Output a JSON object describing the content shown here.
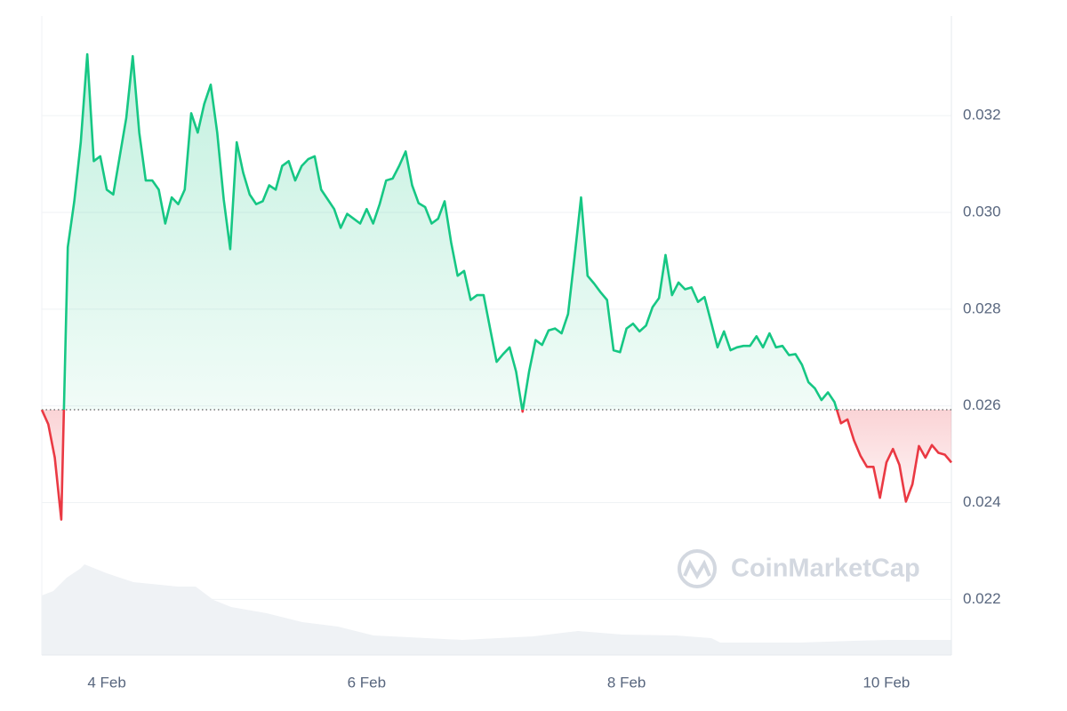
{
  "chart_data": {
    "type": "line",
    "watermark": "CoinMarketCap",
    "x": [
      3.5,
      3.55,
      3.6,
      3.65,
      3.7,
      3.75,
      3.8,
      3.85,
      3.9,
      3.95,
      4,
      4.05,
      4.1,
      4.15,
      4.2,
      4.25,
      4.3,
      4.35,
      4.4,
      4.45,
      4.5,
      4.55,
      4.6,
      4.65,
      4.7,
      4.75,
      4.8,
      4.85,
      4.9,
      4.95,
      5,
      5.05,
      5.1,
      5.15,
      5.2,
      5.25,
      5.3,
      5.35,
      5.4,
      5.45,
      5.5,
      5.55,
      5.6,
      5.65,
      5.7,
      5.75,
      5.8,
      5.85,
      5.9,
      5.95,
      6,
      6.05,
      6.1,
      6.15,
      6.2,
      6.25,
      6.3,
      6.35,
      6.4,
      6.45,
      6.5,
      6.55,
      6.6,
      6.65,
      6.7,
      6.75,
      6.8,
      6.85,
      6.9,
      6.95,
      7,
      7.05,
      7.1,
      7.15,
      7.2,
      7.25,
      7.3,
      7.35,
      7.4,
      7.45,
      7.5,
      7.55,
      7.6,
      7.65,
      7.7,
      7.75,
      7.8,
      7.85,
      7.9,
      7.95,
      8,
      8.05,
      8.1,
      8.15,
      8.2,
      8.25,
      8.3,
      8.35,
      8.4,
      8.45,
      8.5,
      8.55,
      8.6,
      8.65,
      8.7,
      8.75,
      8.8,
      8.85,
      8.9,
      8.95,
      9,
      9.05,
      9.1,
      9.15,
      9.2,
      9.25,
      9.3,
      9.35,
      9.4,
      9.45,
      9.5,
      9.55,
      9.6,
      9.65,
      9.7,
      9.75,
      9.8,
      9.85,
      9.9,
      9.95,
      10,
      10.05,
      10.1,
      10.15,
      10.2,
      10.25,
      10.3,
      10.35,
      10.4,
      10.45,
      10.5
    ],
    "values": [
      0.02592,
      0.02562,
      0.02493,
      0.02365,
      0.02928,
      0.03023,
      0.03145,
      0.03327,
      0.03106,
      0.03116,
      0.03047,
      0.03037,
      0.03116,
      0.03195,
      0.03323,
      0.03165,
      0.03066,
      0.03066,
      0.03047,
      0.02977,
      0.03031,
      0.03017,
      0.03047,
      0.03205,
      0.03165,
      0.03224,
      0.03264,
      0.03165,
      0.03027,
      0.02924,
      0.03145,
      0.03082,
      0.03037,
      0.03017,
      0.03023,
      0.03056,
      0.03047,
      0.03096,
      0.03106,
      0.03066,
      0.03096,
      0.0311,
      0.03116,
      0.03047,
      0.03027,
      0.03007,
      0.02968,
      0.02997,
      0.02987,
      0.02977,
      0.03007,
      0.02977,
      0.03017,
      0.03066,
      0.0307,
      0.03096,
      0.03126,
      0.03056,
      0.03019,
      0.03011,
      0.02977,
      0.02987,
      0.03023,
      0.02938,
      0.02869,
      0.02879,
      0.02819,
      0.02829,
      0.02829,
      0.0276,
      0.02691,
      0.02707,
      0.02721,
      0.02671,
      0.02588,
      0.02671,
      0.02736,
      0.02726,
      0.02756,
      0.0276,
      0.0275,
      0.0279,
      0.02908,
      0.03031,
      0.02869,
      0.02853,
      0.02835,
      0.02819,
      0.02715,
      0.02711,
      0.0276,
      0.0277,
      0.02754,
      0.02766,
      0.02804,
      0.02823,
      0.02912,
      0.02829,
      0.02855,
      0.02841,
      0.02845,
      0.02815,
      0.02825,
      0.02774,
      0.02721,
      0.02754,
      0.02715,
      0.02721,
      0.02724,
      0.02724,
      0.02744,
      0.02721,
      0.0275,
      0.02721,
      0.02724,
      0.02705,
      0.02707,
      0.02685,
      0.02649,
      0.02636,
      0.02612,
      0.02628,
      0.02608,
      0.02564,
      0.02572,
      0.02529,
      0.02497,
      0.02474,
      0.02474,
      0.0241,
      0.02483,
      0.02511,
      0.02478,
      0.02402,
      0.02438,
      0.02517,
      0.02493,
      0.02519,
      0.02503,
      0.02499,
      0.02483
    ],
    "baseline": 0.02592,
    "color_up": "#16c784",
    "color_down": "#ea3943",
    "xlim": [
      3.5,
      10.5
    ],
    "xticks": [
      {
        "value": 4,
        "label": "4 Feb"
      },
      {
        "value": 6,
        "label": "6 Feb"
      },
      {
        "value": 8,
        "label": "8 Feb"
      },
      {
        "value": 10,
        "label": "10 Feb"
      }
    ],
    "ylim": [
      0.02085,
      0.03406
    ],
    "yticks": [
      0.022,
      0.024,
      0.026,
      0.028,
      {
        "value": 0.03,
        "label": "0.030"
      },
      0.032
    ],
    "grid": true
  }
}
